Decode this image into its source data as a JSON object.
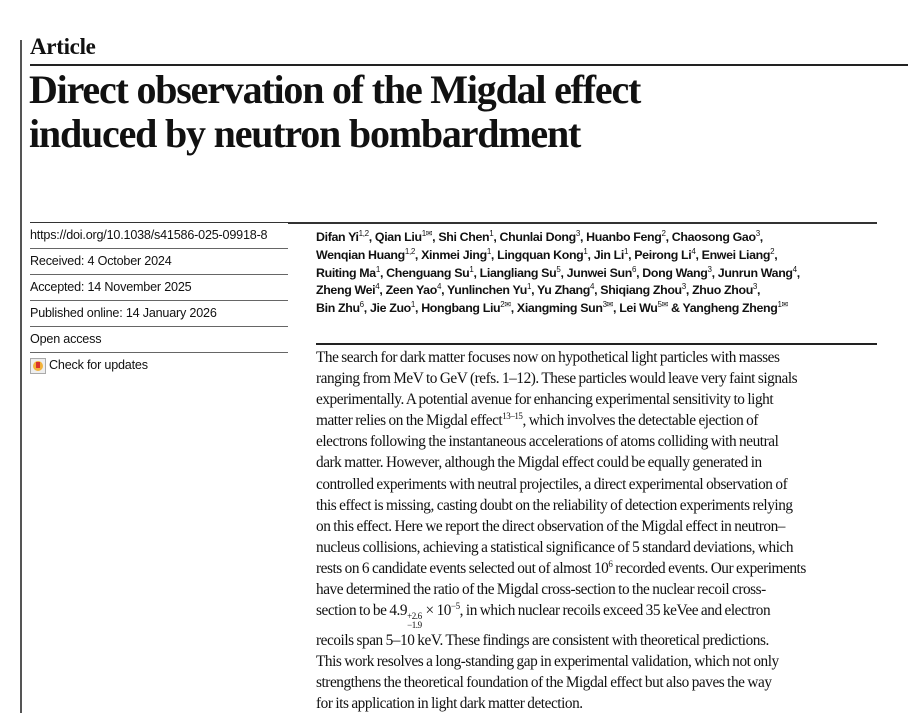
{
  "article_type": "Article",
  "title_lines": [
    "Direct observation of the Migdal effect",
    "induced by neutron bombardment"
  ],
  "meta": {
    "doi": "https://doi.org/10.1038/s41586-025-09918-8",
    "received": "Received: 4 October 2024",
    "accepted": "Accepted: 14 November 2025",
    "published": "Published online: 14 January 2026",
    "open_access": "Open access",
    "check_updates": "Check for updates",
    "check_updates_icon": "check-for-updates-badge"
  },
  "authors": {
    "lines": [
      [
        {
          "name": "Difan Yi",
          "sup": "1,2"
        },
        {
          "name": "Qian Liu",
          "sup": "1✉"
        },
        {
          "name": "Shi Chen",
          "sup": "1"
        },
        {
          "name": "Chunlai Dong",
          "sup": "3"
        },
        {
          "name": "Huanbo Feng",
          "sup": "2"
        },
        {
          "name": "Chaosong Gao",
          "sup": "3"
        }
      ],
      [
        {
          "name": "Wenqian Huang",
          "sup": "1,2"
        },
        {
          "name": "Xinmei Jing",
          "sup": "1"
        },
        {
          "name": "Lingquan Kong",
          "sup": "1"
        },
        {
          "name": "Jin Li",
          "sup": "1"
        },
        {
          "name": "Peirong Li",
          "sup": "4"
        },
        {
          "name": "Enwei Liang",
          "sup": "2"
        }
      ],
      [
        {
          "name": "Ruiting Ma",
          "sup": "1"
        },
        {
          "name": "Chenguang Su",
          "sup": "1"
        },
        {
          "name": "Liangliang Su",
          "sup": "5"
        },
        {
          "name": "Junwei Sun",
          "sup": "6"
        },
        {
          "name": "Dong Wang",
          "sup": "3"
        },
        {
          "name": "Junrun Wang",
          "sup": "4"
        }
      ],
      [
        {
          "name": "Zheng Wei",
          "sup": "4"
        },
        {
          "name": "Zeen Yao",
          "sup": "4"
        },
        {
          "name": "Yunlinchen Yu",
          "sup": "1"
        },
        {
          "name": "Yu Zhang",
          "sup": "4"
        },
        {
          "name": "Shiqiang Zhou",
          "sup": "3"
        },
        {
          "name": "Zhuo Zhou",
          "sup": "3"
        }
      ],
      [
        {
          "name": "Bin Zhu",
          "sup": "6"
        },
        {
          "name": "Jie Zuo",
          "sup": "1"
        },
        {
          "name": "Hongbang Liu",
          "sup": "2✉"
        },
        {
          "name": "Xiangming Sun",
          "sup": "3✉"
        },
        {
          "name": "Lei Wu",
          "sup": "5✉"
        },
        {
          "name": "Yangheng Zheng",
          "sup": "1✉",
          "last": true
        }
      ]
    ],
    "separator": ", ",
    "final_conjunction": " & "
  },
  "abstract_lines": [
    [
      {
        "t": "The search for dark matter focuses now on hypothetical light particles with masses"
      }
    ],
    [
      {
        "t": "ranging from MeV to GeV (refs. 1–12). These particles would leave very faint signals"
      }
    ],
    [
      {
        "t": "experimentally. A potential avenue for enhancing experimental sensitivity to light"
      }
    ],
    [
      {
        "t": "matter relies on the Migdal effect"
      },
      {
        "sup": "13–15"
      },
      {
        "t": ", which involves the detectable ejection of"
      }
    ],
    [
      {
        "t": "electrons following the instantaneous accelerations of atoms colliding with neutral"
      }
    ],
    [
      {
        "t": "dark matter. However, although the Migdal effect could be equally generated in"
      }
    ],
    [
      {
        "t": "controlled experiments with neutral projectiles, a direct experimental observation of"
      }
    ],
    [
      {
        "t": "this effect is missing, casting doubt on the reliability of detection experiments relying"
      }
    ],
    [
      {
        "t": "on this effect. Here we report the direct observation of the Migdal effect in neutron–"
      }
    ],
    [
      {
        "t": "nucleus collisions, achieving a statistical significance of 5 standard deviations, which"
      }
    ],
    [
      {
        "t": "rests on 6 candidate events selected out of almost 10"
      },
      {
        "sup": "6"
      },
      {
        "t": " recorded events. Our experiments"
      }
    ],
    [
      {
        "t": "have determined the ratio of the Migdal cross-section to the nuclear recoil cross-"
      }
    ],
    [
      {
        "t": "section to be 4.9"
      },
      {
        "supsub": [
          "+2.6",
          "−1.9"
        ]
      },
      {
        "t": " × 10"
      },
      {
        "sup": "−5"
      },
      {
        "t": ", in which nuclear recoils exceed 35 keVee and electron"
      }
    ],
    [
      {
        "t": "recoils span 5–10 keV. These findings are consistent with theoretical predictions."
      }
    ],
    [
      {
        "t": "This work resolves a long-standing gap in experimental validation, which not only"
      }
    ],
    [
      {
        "t": "strengthens the theoretical foundation of the Migdal effect but also paves the way"
      }
    ],
    [
      {
        "t": "for its application in light dark matter detection."
      }
    ]
  ]
}
